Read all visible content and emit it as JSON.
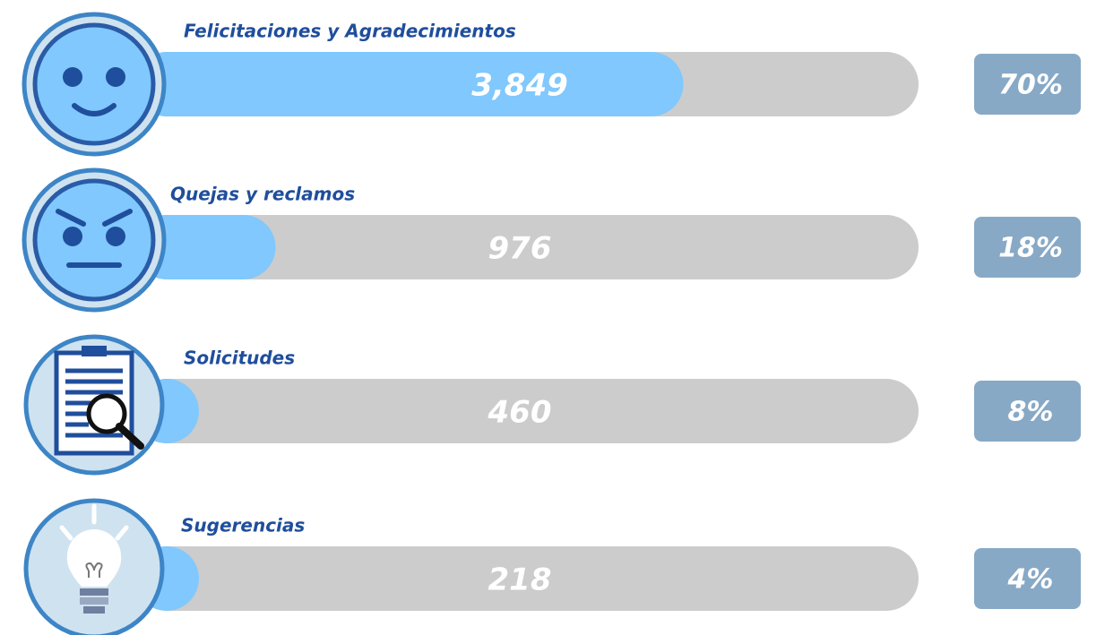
{
  "chart_data": {
    "type": "bar",
    "categories": [
      "Felicitaciones y Agradecimientos",
      "Quejas y reclamos",
      "Solicitudes",
      "Sugerencias"
    ],
    "values": [
      3849,
      976,
      460,
      218
    ],
    "value_labels": [
      "3,849",
      "976",
      "460",
      "218"
    ],
    "shares": [
      70,
      18,
      8,
      4
    ],
    "share_labels": [
      "70%",
      "18%",
      "8%",
      "4%"
    ],
    "xlim": [
      0,
      100
    ],
    "color": "#80c8fd"
  }
}
